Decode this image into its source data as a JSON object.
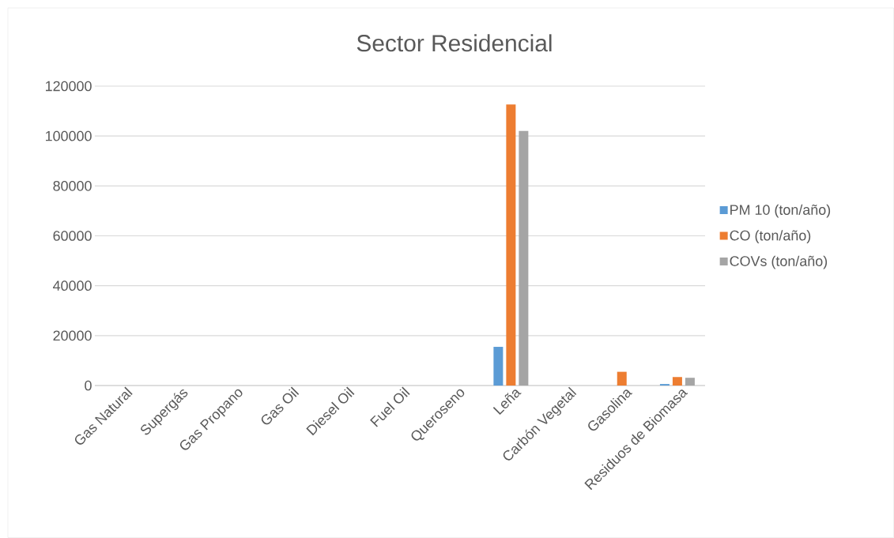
{
  "chart_data": {
    "type": "bar",
    "title": "Sector Residencial",
    "categories": [
      "Gas Natural",
      "Supergás",
      "Gas Propano",
      "Gas Oil",
      "Diesel Oil",
      "Fuel Oil",
      "Queroseno",
      "Leña",
      "Carbón Vegetal",
      "Gasolina",
      "Residuos de Biomasa"
    ],
    "series": [
      {
        "name": "PM 10 (ton/año)",
        "color": "#5b9bd5",
        "values": [
          0,
          0,
          0,
          0,
          0,
          0,
          0,
          15500,
          0,
          0,
          600
        ]
      },
      {
        "name": "CO (ton/año)",
        "color": "#ed7d31",
        "values": [
          0,
          0,
          0,
          0,
          0,
          0,
          0,
          112600,
          0,
          5500,
          3400
        ]
      },
      {
        "name": "COVs (ton/año)",
        "color": "#a5a5a5",
        "values": [
          0,
          0,
          0,
          0,
          0,
          0,
          0,
          102000,
          0,
          0,
          3100
        ]
      }
    ],
    "ylim": [
      0,
      120000
    ],
    "yticks": [
      0,
      20000,
      40000,
      60000,
      80000,
      100000,
      120000
    ],
    "grid": "y",
    "legend": "right"
  }
}
